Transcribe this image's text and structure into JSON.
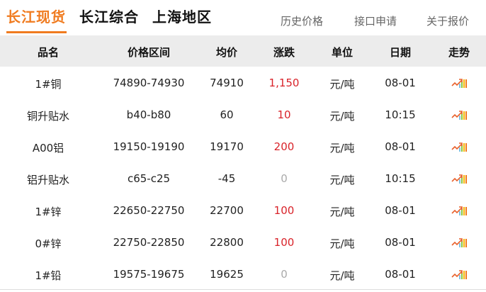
{
  "tabs": [
    {
      "label": "长江现货",
      "active": true
    },
    {
      "label": "长江综合",
      "active": false
    },
    {
      "label": "上海地区",
      "active": false
    }
  ],
  "links": [
    "历史价格",
    "接口申请",
    "关于报价"
  ],
  "columns": [
    "品名",
    "价格区间",
    "均价",
    "涨跌",
    "单位",
    "日期",
    "走势"
  ],
  "rows": [
    {
      "name": "1#铜",
      "range": "74890-74930",
      "avg": "74910",
      "change": "1,150",
      "dir": "up",
      "unit": "元/吨",
      "date": "08-01"
    },
    {
      "name": "铜升贴水",
      "range": "b40-b80",
      "avg": "60",
      "change": "10",
      "dir": "up",
      "unit": "元/吨",
      "date": "10:15"
    },
    {
      "name": "A00铝",
      "range": "19150-19190",
      "avg": "19170",
      "change": "200",
      "dir": "up",
      "unit": "元/吨",
      "date": "08-01"
    },
    {
      "name": "铝升贴水",
      "range": "c65-c25",
      "avg": "-45",
      "change": "0",
      "dir": "flat",
      "unit": "元/吨",
      "date": "10:15"
    },
    {
      "name": "1#锌",
      "range": "22650-22750",
      "avg": "22700",
      "change": "100",
      "dir": "up",
      "unit": "元/吨",
      "date": "08-01"
    },
    {
      "name": "0#锌",
      "range": "22750-22850",
      "avg": "22800",
      "change": "100",
      "dir": "up",
      "unit": "元/吨",
      "date": "08-01"
    },
    {
      "name": "1#铅",
      "range": "19575-19675",
      "avg": "19625",
      "change": "0",
      "dir": "flat",
      "unit": "元/吨",
      "date": "08-01"
    }
  ],
  "colors": {
    "accent": "#f07b1f",
    "up": "#d9232a",
    "flat": "#aaaaaa",
    "header_bg": "#ececec"
  },
  "trend_icon": "trend-chart-icon"
}
